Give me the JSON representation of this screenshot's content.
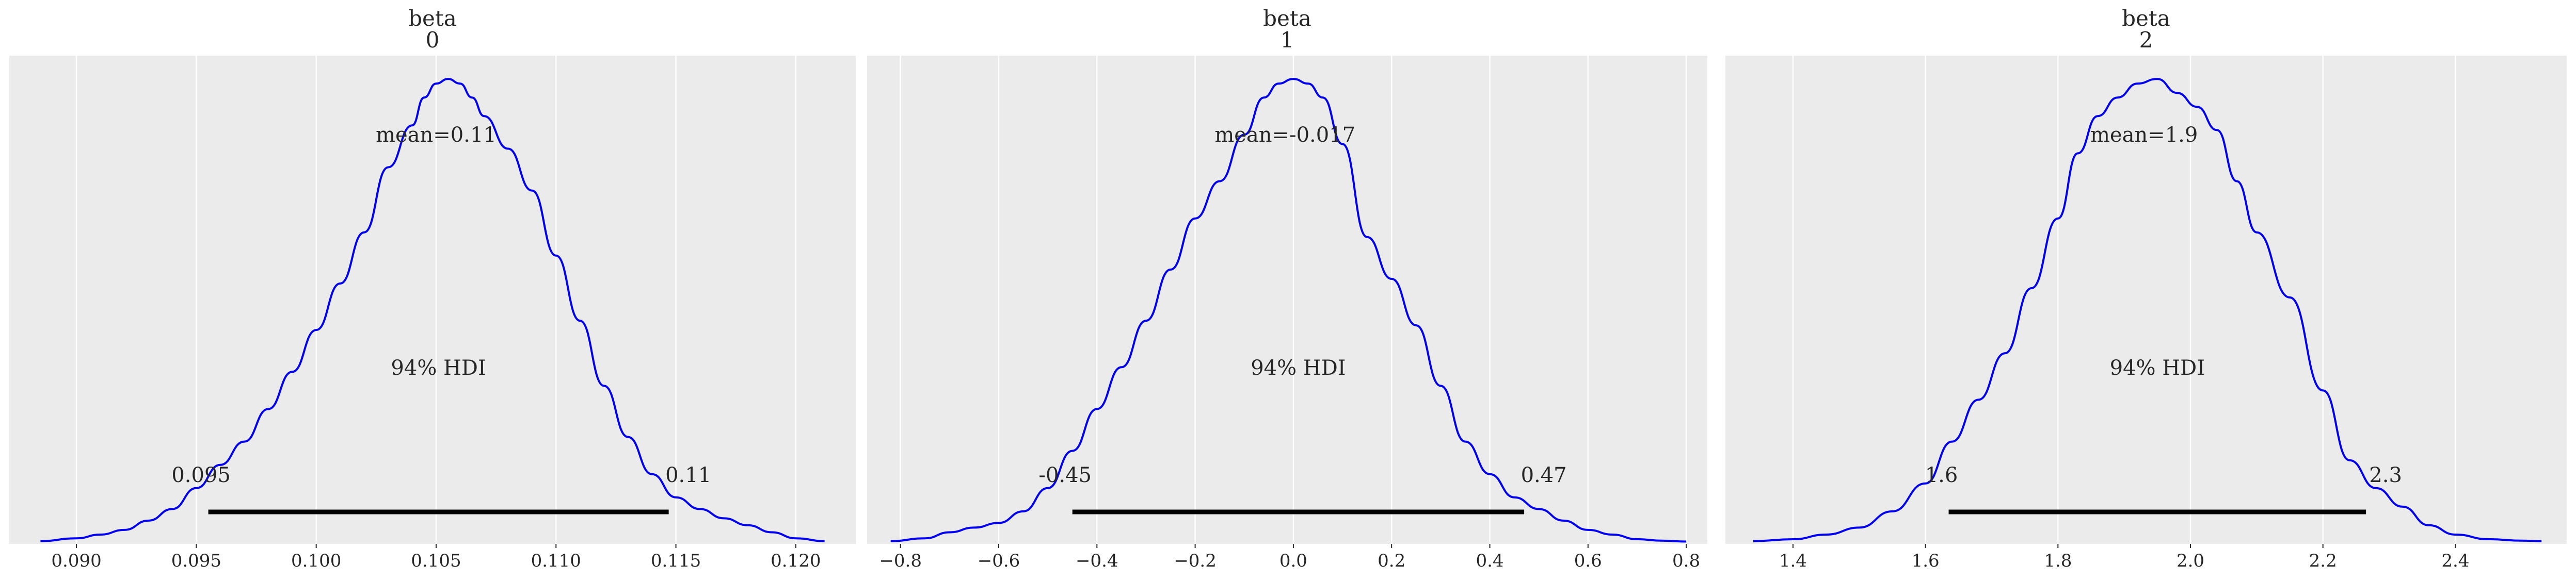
{
  "chart_data": [
    {
      "type": "area",
      "title_lines": [
        "beta",
        "0"
      ],
      "x_ticks": [
        0.09,
        0.095,
        0.1,
        0.105,
        0.11,
        0.115,
        0.12
      ],
      "x_tick_labels": [
        "0.090",
        "0.095",
        "0.100",
        "0.105",
        "0.110",
        "0.115",
        "0.120"
      ],
      "xlim": [
        0.0872,
        0.1225
      ],
      "ylim": [
        0,
        1.05
      ],
      "grid": true,
      "color": "#0000ee",
      "mean_label": "mean=0.11",
      "mean_value": 0.105,
      "hdi_label": "94% HDI",
      "hdi_low": 0.0955,
      "hdi_high": 0.1147,
      "hdi_low_label": "0.095",
      "hdi_high_label": "0.11",
      "density": {
        "x": [
          0.0885,
          0.09,
          0.091,
          0.092,
          0.093,
          0.094,
          0.095,
          0.096,
          0.097,
          0.098,
          0.099,
          0.1,
          0.101,
          0.102,
          0.103,
          0.104,
          0.1045,
          0.105,
          0.1055,
          0.106,
          0.1065,
          0.107,
          0.108,
          0.109,
          0.11,
          0.111,
          0.112,
          0.113,
          0.114,
          0.115,
          0.116,
          0.117,
          0.118,
          0.119,
          0.12,
          0.1212
        ],
        "y": [
          0.006,
          0.012,
          0.02,
          0.03,
          0.05,
          0.075,
          0.12,
          0.17,
          0.22,
          0.29,
          0.37,
          0.46,
          0.56,
          0.67,
          0.81,
          0.9,
          0.96,
          0.99,
          1.0,
          0.99,
          0.96,
          0.92,
          0.85,
          0.76,
          0.62,
          0.48,
          0.34,
          0.23,
          0.15,
          0.1,
          0.075,
          0.055,
          0.04,
          0.025,
          0.012,
          0.006
        ]
      }
    },
    {
      "type": "area",
      "title_lines": [
        "beta",
        "1"
      ],
      "x_ticks": [
        -0.8,
        -0.6,
        -0.4,
        -0.2,
        0.0,
        0.2,
        0.4,
        0.6,
        0.8
      ],
      "x_tick_labels": [
        "−0.8",
        "−0.6",
        "−0.4",
        "−0.2",
        "0.0",
        "0.2",
        "0.4",
        "0.6",
        "0.8"
      ],
      "xlim": [
        -0.868,
        0.843
      ],
      "ylim": [
        0,
        1.05
      ],
      "grid": true,
      "color": "#0000ee",
      "mean_label": "mean=-0.017",
      "mean_value": -0.017,
      "hdi_label": "94% HDI",
      "hdi_low": -0.45,
      "hdi_high": 0.47,
      "hdi_low_label": "-0.45",
      "hdi_high_label": "0.47",
      "density": {
        "x": [
          -0.82,
          -0.75,
          -0.7,
          -0.65,
          -0.6,
          -0.55,
          -0.5,
          -0.45,
          -0.4,
          -0.35,
          -0.3,
          -0.25,
          -0.2,
          -0.15,
          -0.1,
          -0.06,
          -0.03,
          0.0,
          0.03,
          0.06,
          0.1,
          0.15,
          0.2,
          0.25,
          0.3,
          0.35,
          0.4,
          0.45,
          0.5,
          0.55,
          0.6,
          0.65,
          0.7,
          0.75,
          0.8
        ],
        "y": [
          0.006,
          0.012,
          0.025,
          0.035,
          0.045,
          0.07,
          0.12,
          0.2,
          0.29,
          0.38,
          0.48,
          0.59,
          0.7,
          0.78,
          0.88,
          0.96,
          0.99,
          1.0,
          0.99,
          0.96,
          0.86,
          0.66,
          0.57,
          0.47,
          0.34,
          0.22,
          0.15,
          0.1,
          0.075,
          0.05,
          0.03,
          0.02,
          0.01,
          0.007,
          0.005
        ]
      }
    },
    {
      "type": "area",
      "title_lines": [
        "beta",
        "2"
      ],
      "x_ticks": [
        1.4,
        1.6,
        1.8,
        2.0,
        2.2,
        2.4
      ],
      "x_tick_labels": [
        "1.4",
        "1.6",
        "1.8",
        "2.0",
        "2.2",
        "2.4"
      ],
      "xlim": [
        1.298,
        2.568
      ],
      "ylim": [
        0,
        1.05
      ],
      "grid": true,
      "color": "#0000ee",
      "mean_label": "mean=1.9",
      "mean_value": 1.93,
      "hdi_label": "94% HDI",
      "hdi_low": 1.635,
      "hdi_high": 2.265,
      "hdi_low_label": "1.6",
      "hdi_high_label": "2.3",
      "density": {
        "x": [
          1.34,
          1.4,
          1.45,
          1.5,
          1.55,
          1.6,
          1.64,
          1.68,
          1.72,
          1.76,
          1.8,
          1.83,
          1.86,
          1.89,
          1.92,
          1.95,
          1.98,
          2.01,
          2.04,
          2.07,
          2.1,
          2.15,
          2.2,
          2.24,
          2.28,
          2.32,
          2.36,
          2.4,
          2.45,
          2.5,
          2.53
        ],
        "y": [
          0.006,
          0.01,
          0.02,
          0.035,
          0.07,
          0.13,
          0.22,
          0.31,
          0.41,
          0.55,
          0.7,
          0.84,
          0.92,
          0.96,
          0.99,
          1.0,
          0.97,
          0.94,
          0.89,
          0.78,
          0.67,
          0.53,
          0.33,
          0.18,
          0.12,
          0.08,
          0.04,
          0.02,
          0.01,
          0.007,
          0.006
        ]
      }
    }
  ]
}
